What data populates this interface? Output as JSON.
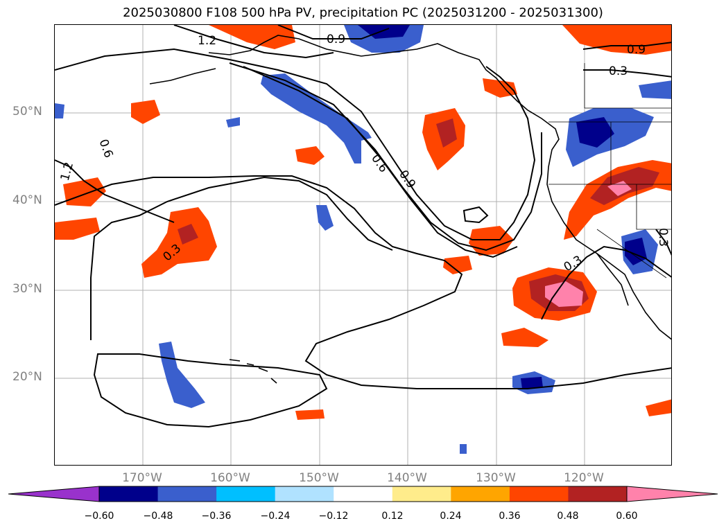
{
  "title": "2025030800 F108 500 hPa PV, precipitation PC (2025031200 - 2025031300)",
  "lat_labels": [
    "50°N",
    "40°N",
    "30°N",
    "20°N"
  ],
  "lon_labels": [
    "170°W",
    "160°W",
    "150°W",
    "140°W",
    "130°W",
    "120°W"
  ],
  "contour_labels": [
    "1.2",
    "0.9",
    "0.6",
    "0.3",
    "0.9",
    "0.6",
    "0.9",
    "1.2",
    "0.3",
    "0.3",
    "0.3"
  ],
  "colorbar": {
    "ticks": [
      "−0.60",
      "−0.48",
      "−0.36",
      "−0.24",
      "−0.12",
      "0.12",
      "0.24",
      "0.36",
      "0.48",
      "0.60"
    ],
    "colors": [
      "#9932CC",
      "#00008B",
      "#3A5FCD",
      "#00BFFF",
      "#B0E2FF",
      "#FFFFFF",
      "#FFEC8B",
      "#FFA500",
      "#FF4500",
      "#B22222",
      "#FF82AB"
    ]
  }
}
